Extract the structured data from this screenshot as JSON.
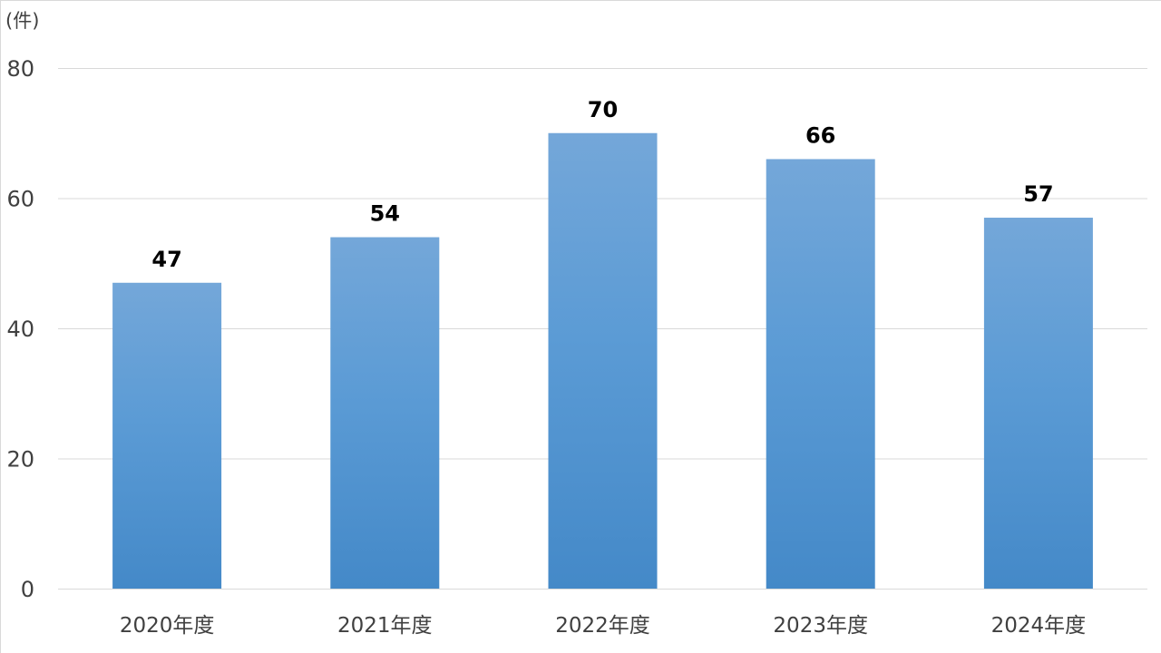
{
  "chart_data": {
    "type": "bar",
    "unit_label": "(件)",
    "categories": [
      "2020年度",
      "2021年度",
      "2022年度",
      "2023年度",
      "2024年度"
    ],
    "values": [
      47,
      54,
      70,
      66,
      57
    ],
    "ylim": [
      0,
      80
    ],
    "yticks": [
      0,
      20,
      40,
      60,
      80
    ],
    "grid": true,
    "legend": "none",
    "bar_color_top": "#74a7d9",
    "bar_color_middle": "#5b9bd5",
    "bar_color_bottom": "#4489c8"
  }
}
